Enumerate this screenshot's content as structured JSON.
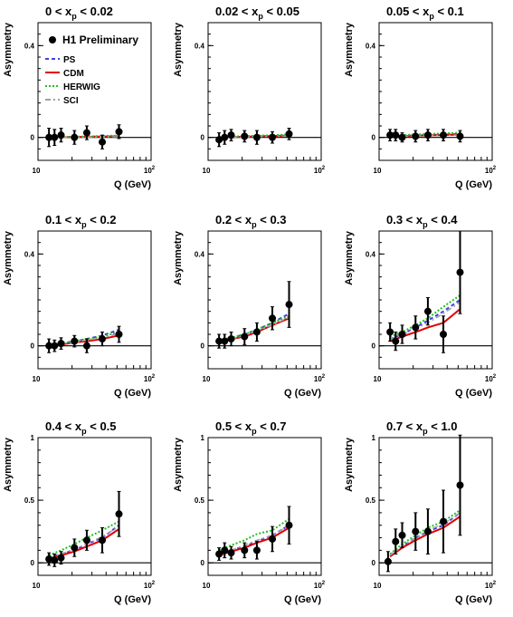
{
  "chart_data": [
    {
      "type": "line",
      "title": {
        "pre": "0 < x",
        "sub": "p",
        "post": " < 0.02"
      },
      "xlabel": "Q (GeV)",
      "ylabel": "Asymmetry",
      "xscale": "log",
      "xlim": [
        10,
        100
      ],
      "xticks": [
        {
          "base": "10",
          "exp": ""
        },
        {
          "base": "10",
          "exp": "2"
        }
      ],
      "ylim": [
        -0.1,
        0.5
      ],
      "yticks": [
        0,
        0.4
      ],
      "ytick_labels": [
        "0",
        "0.4"
      ],
      "data": {
        "x": [
          12.5,
          14,
          16,
          21,
          27,
          37,
          52
        ],
        "y": [
          0.0,
          0.0,
          0.01,
          0.0,
          0.02,
          -0.02,
          0.025
        ],
        "err": [
          0.04,
          0.035,
          0.03,
          0.03,
          0.03,
          0.03,
          0.03
        ]
      },
      "series": [
        {
          "name": "PS",
          "x": [
            12.5,
            52
          ],
          "y": [
            0.0,
            0.005
          ]
        },
        {
          "name": "CDM",
          "x": [
            12.5,
            52
          ],
          "y": [
            0.0,
            0.005
          ]
        },
        {
          "name": "HERWIG",
          "x": [
            12.5,
            52
          ],
          "y": [
            0.0,
            0.008
          ]
        },
        {
          "name": "SCI",
          "x": [
            12.5,
            52
          ],
          "y": [
            0.0,
            0.003
          ]
        }
      ]
    },
    {
      "type": "line",
      "title": {
        "pre": "0.02 < x",
        "sub": "p",
        "post": " < 0.05"
      },
      "xlabel": "",
      "ylabel": "Asymmetry",
      "xscale": "log",
      "xlim": [
        10,
        100
      ],
      "xticks": [
        {
          "base": "10",
          "exp": ""
        },
        {
          "base": "10",
          "exp": "2"
        }
      ],
      "ylim": [
        -0.1,
        0.5
      ],
      "yticks": [
        0,
        0.4
      ],
      "ytick_labels": [
        "0",
        "0.4"
      ],
      "data": {
        "x": [
          12.5,
          14,
          16,
          21,
          27,
          37,
          52
        ],
        "y": [
          -0.01,
          0.0,
          0.01,
          0.005,
          0.0,
          0.0,
          0.015
        ],
        "err": [
          0.03,
          0.03,
          0.025,
          0.025,
          0.03,
          0.025,
          0.025
        ]
      },
      "series": [
        {
          "name": "PS",
          "x": [
            12.5,
            52
          ],
          "y": [
            0.0,
            0.008
          ]
        },
        {
          "name": "CDM",
          "x": [
            12.5,
            52
          ],
          "y": [
            0.0,
            0.008
          ]
        },
        {
          "name": "HERWIG",
          "x": [
            12.5,
            52
          ],
          "y": [
            0.002,
            0.012
          ]
        },
        {
          "name": "SCI",
          "x": [
            12.5,
            52
          ],
          "y": [
            0.0,
            0.006
          ]
        }
      ]
    },
    {
      "type": "line",
      "title": {
        "pre": "0.05 < x",
        "sub": "p",
        "post": " < 0.1"
      },
      "xlabel": "Q (GeV)",
      "ylabel": "Asymmetry",
      "xscale": "log",
      "xlim": [
        10,
        100
      ],
      "xticks": [
        {
          "base": "10",
          "exp": ""
        },
        {
          "base": "10",
          "exp": "2"
        }
      ],
      "ylim": [
        -0.1,
        0.5
      ],
      "yticks": [
        0,
        0.4
      ],
      "ytick_labels": [
        "0",
        "0.4"
      ],
      "data": {
        "x": [
          12.5,
          14,
          16,
          21,
          27,
          37,
          52
        ],
        "y": [
          0.01,
          0.01,
          0.0,
          0.005,
          0.01,
          0.01,
          0.005
        ],
        "err": [
          0.025,
          0.025,
          0.02,
          0.025,
          0.025,
          0.025,
          0.025
        ]
      },
      "series": [
        {
          "name": "PS",
          "x": [
            12.5,
            52
          ],
          "y": [
            0.005,
            0.015
          ]
        },
        {
          "name": "CDM",
          "x": [
            12.5,
            52
          ],
          "y": [
            0.005,
            0.012
          ]
        },
        {
          "name": "HERWIG",
          "x": [
            12.5,
            52
          ],
          "y": [
            0.008,
            0.02
          ]
        },
        {
          "name": "SCI",
          "x": [
            12.5,
            52
          ],
          "y": [
            0.004,
            0.01
          ]
        }
      ]
    },
    {
      "type": "line",
      "title": {
        "pre": "0.1 < x",
        "sub": "p",
        "post": " < 0.2"
      },
      "xlabel": "Q (GeV)",
      "ylabel": "Asymmetry",
      "xscale": "log",
      "xlim": [
        10,
        100
      ],
      "xticks": [
        {
          "base": "10",
          "exp": ""
        },
        {
          "base": "10",
          "exp": "2"
        }
      ],
      "ylim": [
        -0.1,
        0.5
      ],
      "yticks": [
        0,
        0.4
      ],
      "ytick_labels": [
        "0",
        "0.4"
      ],
      "data": {
        "x": [
          12.5,
          14,
          16,
          21,
          27,
          37,
          52
        ],
        "y": [
          0.0,
          0.0,
          0.01,
          0.02,
          0.0,
          0.03,
          0.05
        ],
        "err": [
          0.03,
          0.025,
          0.025,
          0.025,
          0.03,
          0.03,
          0.035
        ]
      },
      "series": [
        {
          "name": "PS",
          "x": [
            12.5,
            16,
            21,
            27,
            37,
            52
          ],
          "y": [
            0.0,
            0.01,
            0.02,
            0.03,
            0.045,
            0.07
          ]
        },
        {
          "name": "CDM",
          "x": [
            12.5,
            16,
            21,
            27,
            37,
            52
          ],
          "y": [
            0.0,
            0.005,
            0.015,
            0.02,
            0.03,
            0.045
          ]
        },
        {
          "name": "HERWIG",
          "x": [
            12.5,
            16,
            21,
            27,
            37,
            52
          ],
          "y": [
            0.005,
            0.01,
            0.02,
            0.03,
            0.04,
            0.06
          ]
        },
        {
          "name": "SCI",
          "x": [
            12.5,
            16,
            21,
            27,
            37,
            52
          ],
          "y": [
            0.0,
            0.01,
            0.015,
            0.025,
            0.035,
            0.055
          ]
        }
      ]
    },
    {
      "type": "line",
      "title": {
        "pre": "0.2 < x",
        "sub": "p",
        "post": " < 0.3"
      },
      "xlabel": "Q (GeV)",
      "ylabel": "Asymmetry",
      "xscale": "log",
      "xlim": [
        10,
        100
      ],
      "xticks": [
        {
          "base": "10",
          "exp": ""
        },
        {
          "base": "10",
          "exp": "2"
        }
      ],
      "ylim": [
        -0.1,
        0.5
      ],
      "yticks": [
        0,
        0.4
      ],
      "ytick_labels": [
        "0",
        "0.4"
      ],
      "data": {
        "x": [
          12.5,
          14,
          16,
          21,
          27,
          37,
          52
        ],
        "y": [
          0.02,
          0.02,
          0.03,
          0.04,
          0.06,
          0.12,
          0.18
        ],
        "err": [
          0.03,
          0.03,
          0.03,
          0.035,
          0.04,
          0.05,
          0.1
        ]
      },
      "series": [
        {
          "name": "PS",
          "x": [
            12.5,
            16,
            21,
            27,
            37,
            52
          ],
          "y": [
            0.02,
            0.035,
            0.05,
            0.07,
            0.1,
            0.14
          ]
        },
        {
          "name": "CDM",
          "x": [
            12.5,
            16,
            21,
            27,
            37,
            52
          ],
          "y": [
            0.02,
            0.03,
            0.04,
            0.06,
            0.09,
            0.12
          ]
        },
        {
          "name": "HERWIG",
          "x": [
            12.5,
            16,
            21,
            27,
            37,
            52
          ],
          "y": [
            0.025,
            0.035,
            0.05,
            0.07,
            0.1,
            0.13
          ]
        },
        {
          "name": "SCI",
          "x": [
            12.5,
            16,
            21,
            27,
            37,
            52
          ],
          "y": [
            0.02,
            0.03,
            0.045,
            0.065,
            0.09,
            0.125
          ]
        }
      ]
    },
    {
      "type": "line",
      "title": {
        "pre": "0.3 < x",
        "sub": "p",
        "post": " < 0.4"
      },
      "xlabel": "Q (GeV)",
      "ylabel": "Asymmetry",
      "xscale": "log",
      "xlim": [
        10,
        100
      ],
      "xticks": [
        {
          "base": "10",
          "exp": ""
        },
        {
          "base": "10",
          "exp": "2"
        }
      ],
      "ylim": [
        -0.1,
        0.5
      ],
      "yticks": [
        0,
        0.4
      ],
      "ytick_labels": [
        "0",
        "0.4"
      ],
      "data": {
        "x": [
          12.5,
          14,
          16,
          21,
          27,
          37,
          52
        ],
        "y": [
          0.06,
          0.02,
          0.05,
          0.08,
          0.15,
          0.05,
          0.32
        ],
        "err": [
          0.04,
          0.04,
          0.04,
          0.05,
          0.06,
          0.08,
          0.18
        ]
      },
      "series": [
        {
          "name": "PS",
          "x": [
            12.5,
            16,
            21,
            27,
            37,
            52
          ],
          "y": [
            0.03,
            0.05,
            0.08,
            0.11,
            0.15,
            0.2
          ]
        },
        {
          "name": "CDM",
          "x": [
            12.5,
            16,
            21,
            27,
            37,
            52
          ],
          "y": [
            0.02,
            0.04,
            0.06,
            0.08,
            0.1,
            0.16
          ]
        },
        {
          "name": "HERWIG",
          "x": [
            12.5,
            16,
            21,
            27,
            37,
            52
          ],
          "y": [
            0.04,
            0.06,
            0.09,
            0.12,
            0.17,
            0.22
          ]
        },
        {
          "name": "SCI",
          "x": [
            12.5,
            16,
            21,
            27,
            37,
            52
          ],
          "y": [
            0.03,
            0.05,
            0.075,
            0.1,
            0.14,
            0.19
          ]
        }
      ]
    },
    {
      "type": "line",
      "title": {
        "pre": "0.4 < x",
        "sub": "p",
        "post": " < 0.5"
      },
      "xlabel": "Q (GeV)",
      "ylabel": "Asymmetry",
      "xscale": "log",
      "xlim": [
        10,
        100
      ],
      "xticks": [
        {
          "base": "10",
          "exp": ""
        },
        {
          "base": "10",
          "exp": "2"
        }
      ],
      "ylim": [
        -0.1,
        1.0
      ],
      "yticks": [
        0,
        0.5,
        1
      ],
      "ytick_labels": [
        "0",
        "0.5",
        "1"
      ],
      "data": {
        "x": [
          12.5,
          14,
          16,
          21,
          27,
          37,
          52
        ],
        "y": [
          0.03,
          0.02,
          0.04,
          0.12,
          0.18,
          0.18,
          0.39
        ],
        "err": [
          0.05,
          0.05,
          0.05,
          0.07,
          0.08,
          0.1,
          0.18
        ]
      },
      "series": [
        {
          "name": "PS",
          "x": [
            12.5,
            16,
            21,
            27,
            37,
            52
          ],
          "y": [
            0.04,
            0.07,
            0.1,
            0.15,
            0.2,
            0.3
          ]
        },
        {
          "name": "CDM",
          "x": [
            12.5,
            16,
            21,
            27,
            37,
            52
          ],
          "y": [
            0.03,
            0.06,
            0.09,
            0.13,
            0.18,
            0.27
          ]
        },
        {
          "name": "HERWIG",
          "x": [
            12.5,
            16,
            21,
            27,
            37,
            52
          ],
          "y": [
            0.06,
            0.1,
            0.15,
            0.2,
            0.26,
            0.33
          ]
        },
        {
          "name": "SCI",
          "x": [
            12.5,
            16,
            21,
            27,
            37,
            52
          ],
          "y": [
            0.04,
            0.07,
            0.11,
            0.15,
            0.21,
            0.29
          ]
        }
      ]
    },
    {
      "type": "line",
      "title": {
        "pre": "0.5 < x",
        "sub": "p",
        "post": " < 0.7"
      },
      "xlabel": "Q (GeV)",
      "ylabel": "Asymmetry",
      "xscale": "log",
      "xlim": [
        10,
        100
      ],
      "xticks": [
        {
          "base": "10",
          "exp": ""
        },
        {
          "base": "10",
          "exp": "2"
        }
      ],
      "ylim": [
        -0.1,
        1.0
      ],
      "yticks": [
        0,
        0.5,
        1
      ],
      "ytick_labels": [
        "0",
        "0.5",
        "1"
      ],
      "data": {
        "x": [
          12.5,
          14,
          16,
          21,
          27,
          37,
          52
        ],
        "y": [
          0.07,
          0.1,
          0.08,
          0.1,
          0.1,
          0.19,
          0.3
        ],
        "err": [
          0.05,
          0.06,
          0.05,
          0.06,
          0.07,
          0.1,
          0.15
        ]
      },
      "series": [
        {
          "name": "PS",
          "x": [
            12.5,
            16,
            21,
            27,
            37,
            52
          ],
          "y": [
            0.07,
            0.1,
            0.13,
            0.17,
            0.22,
            0.3
          ]
        },
        {
          "name": "CDM",
          "x": [
            12.5,
            16,
            21,
            27,
            37,
            52
          ],
          "y": [
            0.06,
            0.09,
            0.12,
            0.16,
            0.2,
            0.28
          ]
        },
        {
          "name": "HERWIG",
          "x": [
            12.5,
            16,
            21,
            27,
            37,
            52
          ],
          "y": [
            0.1,
            0.14,
            0.18,
            0.23,
            0.26,
            0.35
          ]
        },
        {
          "name": "SCI",
          "x": [
            12.5,
            16,
            21,
            27,
            37,
            52
          ],
          "y": [
            0.07,
            0.1,
            0.14,
            0.18,
            0.22,
            0.3
          ]
        }
      ]
    },
    {
      "type": "line",
      "title": {
        "pre": "0.7 < x",
        "sub": "p",
        "post": " < 1.0"
      },
      "xlabel": "Q (GeV)",
      "ylabel": "Asymmetry",
      "xscale": "log",
      "xlim": [
        10,
        100
      ],
      "xticks": [
        {
          "base": "10",
          "exp": ""
        },
        {
          "base": "10",
          "exp": "2"
        }
      ],
      "ylim": [
        -0.1,
        1.0
      ],
      "yticks": [
        0,
        0.5,
        1
      ],
      "ytick_labels": [
        "0",
        "0.5",
        "1"
      ],
      "data": {
        "x": [
          12,
          14,
          16,
          21,
          27,
          37,
          52
        ],
        "y": [
          0.01,
          0.17,
          0.22,
          0.25,
          0.25,
          0.33,
          0.62
        ],
        "err": [
          0.08,
          0.1,
          0.1,
          0.15,
          0.18,
          0.25,
          0.4
        ]
      },
      "series": [
        {
          "name": "PS",
          "x": [
            12.5,
            16,
            21,
            27,
            37,
            52
          ],
          "y": [
            0.06,
            0.13,
            0.2,
            0.25,
            0.3,
            0.4
          ]
        },
        {
          "name": "CDM",
          "x": [
            12.5,
            16,
            21,
            27,
            37,
            52
          ],
          "y": [
            0.05,
            0.12,
            0.18,
            0.23,
            0.28,
            0.37
          ]
        },
        {
          "name": "HERWIG",
          "x": [
            12.5,
            16,
            21,
            27,
            37,
            52
          ],
          "y": [
            0.07,
            0.15,
            0.22,
            0.28,
            0.33,
            0.42
          ]
        },
        {
          "name": "SCI",
          "x": [
            12.5,
            16,
            21,
            27,
            37,
            52
          ],
          "y": [
            0.06,
            0.13,
            0.2,
            0.26,
            0.31,
            0.4
          ]
        }
      ]
    }
  ],
  "legend": {
    "placement": "top-left of first panel",
    "data_label": "H1 Preliminary",
    "items": [
      {
        "name": "PS",
        "color": "#4040e0",
        "dash": "4,3"
      },
      {
        "name": "CDM",
        "color": "#e00000",
        "dash": ""
      },
      {
        "name": "HERWIG",
        "color": "#20c020",
        "dash": "2,2"
      },
      {
        "name": "SCI",
        "color": "#a0a0a0",
        "dash": "6,3,2,3"
      }
    ]
  },
  "colors": {
    "PS": "#4040e0",
    "CDM": "#e00000",
    "HERWIG": "#20c020",
    "SCI": "#a0a0a0",
    "data": "#000000"
  }
}
